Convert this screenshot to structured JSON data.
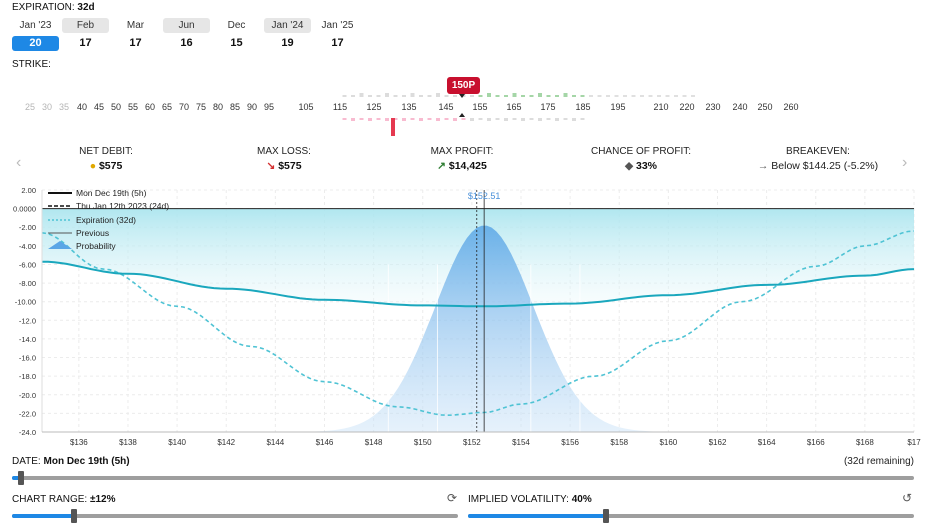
{
  "expiration": {
    "label": "EXPIRATION:",
    "value": "32d",
    "months": [
      "Jan '23",
      "Feb",
      "Mar",
      "Jun",
      "Dec",
      "Jan '24",
      "Jan '25"
    ],
    "days": [
      "20",
      "17",
      "17",
      "16",
      "15",
      "19",
      "17"
    ],
    "selected_index": 0
  },
  "strike": {
    "label": "STRIKE:",
    "selected_badge": "150P",
    "ticks_faded": [
      "25",
      "30",
      "35"
    ],
    "ticks": [
      "40",
      "45",
      "50",
      "55",
      "60",
      "65",
      "70",
      "75",
      "80",
      "85",
      "90",
      "95",
      "105",
      "115",
      "125",
      "135",
      "145",
      "155",
      "165",
      "175",
      "185",
      "195",
      "210",
      "220",
      "230",
      "240",
      "250",
      "260"
    ]
  },
  "stats": {
    "net_debit": {
      "label": "NET DEBIT:",
      "value": "$575"
    },
    "max_loss": {
      "label": "MAX LOSS:",
      "value": "$575"
    },
    "max_profit": {
      "label": "MAX PROFIT:",
      "value": "$14,425"
    },
    "chance": {
      "label": "CHANCE OF PROFIT:",
      "value": "33%"
    },
    "breakeven": {
      "label": "BREAKEVEN:",
      "value": "Below $144.25",
      "detail": "(-5.2%)"
    }
  },
  "chart_data": {
    "type": "line",
    "legend": [
      "Mon Dec 19th (5h)",
      "Thu Jan 12th 2023 (24d)",
      "Expiration (32d)",
      "Previous",
      "Probability"
    ],
    "y_ticks": [
      "2.00",
      "0.0000",
      "-2.00",
      "-4.00",
      "-6.00",
      "-8.00",
      "-10.00",
      "-12.0",
      "-14.0",
      "-16.0",
      "-18.0",
      "-20.0",
      "-22.0",
      "-24.0"
    ],
    "x_ticks": [
      "$136",
      "$138",
      "$140",
      "$142",
      "$144",
      "$146",
      "$148",
      "$150",
      "$152",
      "$154",
      "$156",
      "$158",
      "$160",
      "$162",
      "$164",
      "$166",
      "$168",
      "$17"
    ],
    "xlim": [
      134.5,
      170
    ],
    "ylim": [
      -24,
      2
    ],
    "current_price_label": "$152.51",
    "current_price": 152.51,
    "series": [
      {
        "name": "Mon Dec 19th (5h)",
        "x": [
          134.5,
          138,
          142,
          146,
          150,
          152.5,
          156,
          160,
          164,
          168,
          170
        ],
        "y": [
          -5.7,
          -7.0,
          -8.6,
          -9.8,
          -10.4,
          -10.5,
          -10.2,
          -9.3,
          -8.2,
          -7.2,
          -6.5
        ]
      },
      {
        "name": "Expiration (32d)",
        "x": [
          134.5,
          137,
          140,
          143,
          146,
          149,
          151,
          152.5,
          154,
          157,
          160,
          163,
          166,
          168,
          170
        ],
        "y": [
          -2.6,
          -6.5,
          -10.5,
          -14.8,
          -18.6,
          -21.3,
          -22.2,
          -21.9,
          -21.0,
          -18.0,
          -14.2,
          -10.0,
          -6.2,
          -4.0,
          -2.4
        ]
      }
    ],
    "grid": true
  },
  "date": {
    "label": "DATE:",
    "value": "Mon Dec 19th (5h)",
    "remaining": "(32d remaining)",
    "progress": 0.01
  },
  "chart_range": {
    "label": "CHART RANGE:",
    "value": "±12%",
    "position": 0.14
  },
  "implied_volatility": {
    "label": "IMPLIED VOLATILITY:",
    "value": "40%",
    "position": 0.31
  }
}
